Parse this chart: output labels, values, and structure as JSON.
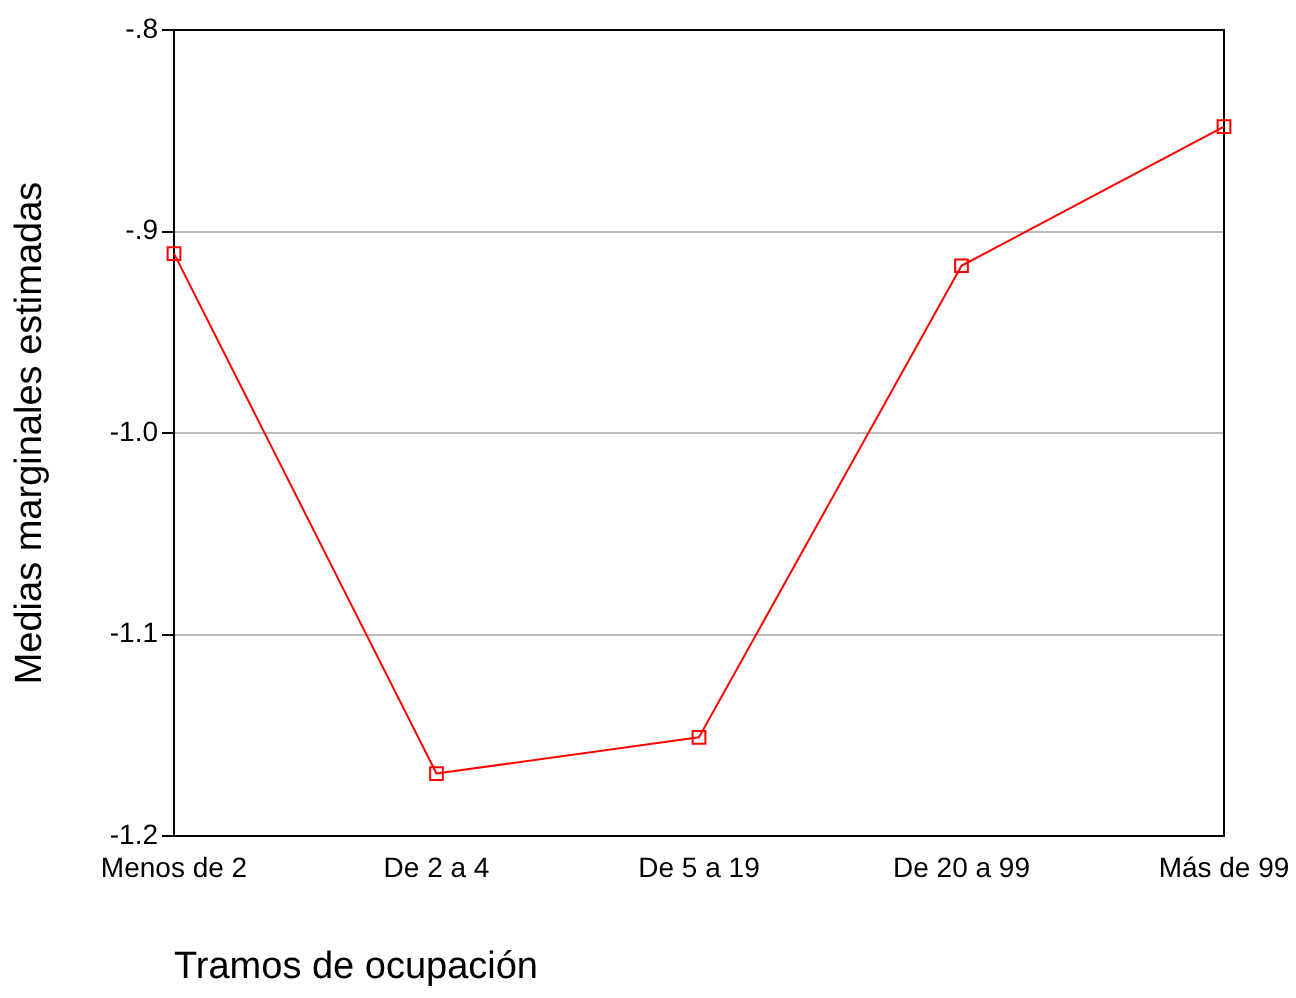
{
  "chart_data": {
    "type": "line",
    "xlabel": "Tramos de ocupación",
    "ylabel": "Medias marginales estimadas",
    "categories": [
      "Menos de 2",
      "De 2 a 4",
      "De 5 a 19",
      "De 20 a 99",
      "Más de 99"
    ],
    "series": [
      {
        "color": "#ff0000",
        "values": [
          -0.911,
          -1.169,
          -1.151,
          -0.917,
          -0.848
        ]
      }
    ],
    "ylim": [
      -1.2,
      -0.8
    ],
    "yticks": [
      {
        "value": -1.2,
        "label": "-1.2"
      },
      {
        "value": -1.1,
        "label": "-1.1"
      },
      {
        "value": -1.0,
        "label": "-1.0"
      },
      {
        "value": -0.9,
        "label": "-.9"
      },
      {
        "value": -0.8,
        "label": "-.8"
      }
    ],
    "grid": "y",
    "marker": "square",
    "line_style": "solid",
    "legend": false
  }
}
